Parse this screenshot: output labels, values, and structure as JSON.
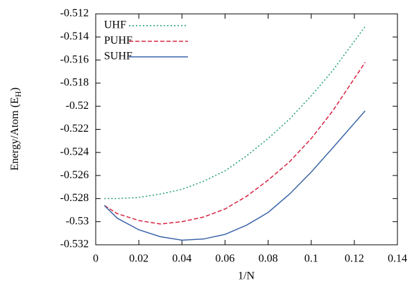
{
  "chart_data": {
    "type": "line",
    "x_label": "1/N",
    "y_label": {
      "text": "Energy/Atom (E",
      "subscript": "H",
      "close": ")"
    },
    "x": [
      0.004,
      0.01,
      0.02,
      0.03,
      0.04,
      0.05,
      0.06,
      0.07,
      0.08,
      0.09,
      0.1,
      0.11,
      0.125
    ],
    "series": [
      {
        "name": "UHF",
        "color": "#1a9a78",
        "style": "dotted",
        "values": [
          -0.528,
          -0.528,
          -0.5279,
          -0.5276,
          -0.5272,
          -0.5265,
          -0.5256,
          -0.5243,
          -0.5228,
          -0.5211,
          -0.5191,
          -0.5169,
          -0.5131
        ]
      },
      {
        "name": "PUHF",
        "color": "#d8203f",
        "style": "dashed",
        "values": [
          -0.5286,
          -0.5293,
          -0.5299,
          -0.5302,
          -0.53,
          -0.5296,
          -0.5289,
          -0.5278,
          -0.5264,
          -0.5248,
          -0.5228,
          -0.5204,
          -0.5162
        ]
      },
      {
        "name": "SUHF",
        "color": "#3a64a8",
        "style": "solid",
        "values": [
          -0.5286,
          -0.5297,
          -0.5307,
          -0.5313,
          -0.5316,
          -0.5315,
          -0.5311,
          -0.5303,
          -0.5292,
          -0.5276,
          -0.5257,
          -0.5236,
          -0.5204
        ]
      }
    ],
    "xlim": [
      0,
      0.14
    ],
    "xticks": [
      0,
      0.02,
      0.04,
      0.06,
      0.08,
      0.1,
      0.12,
      0.14
    ],
    "ylim": [
      -0.532,
      -0.512
    ],
    "yticks": [
      -0.532,
      -0.53,
      -0.528,
      -0.526,
      -0.524,
      -0.522,
      -0.52,
      -0.518,
      -0.516,
      -0.514,
      -0.512
    ],
    "legend": "top-left",
    "grid": false
  }
}
